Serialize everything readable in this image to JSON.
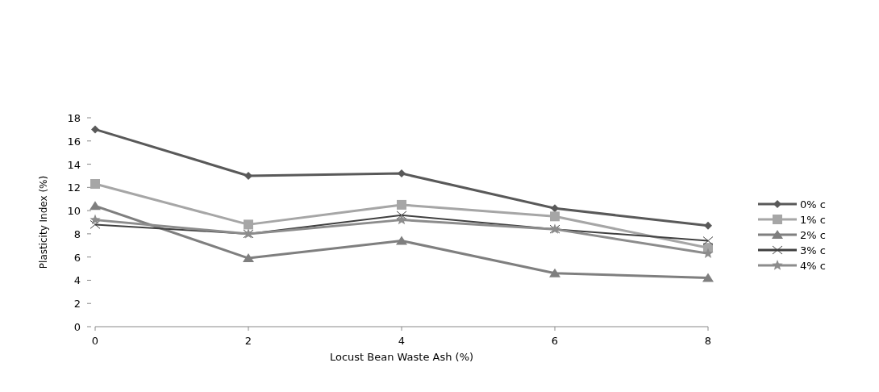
{
  "chart_data": {
    "type": "line",
    "xlabel": "Locust Bean Waste Ash (%)",
    "ylabel": "Plasticity Index (%)",
    "x": [
      0,
      2,
      4,
      6,
      8
    ],
    "xlim": [
      0,
      8
    ],
    "xticks": [
      0,
      2,
      4,
      6,
      8
    ],
    "ylim": [
      0,
      18
    ],
    "yticks": [
      0,
      2,
      4,
      6,
      8,
      10,
      12,
      14,
      16,
      18
    ],
    "grid": false,
    "legend": "right",
    "line_style": "solid",
    "series": [
      {
        "name": "0% c",
        "color": "#595959",
        "marker": "diamond",
        "values": [
          17,
          13,
          13.2,
          10.2,
          8.7
        ]
      },
      {
        "name": "1% c",
        "color": "#a6a6a6",
        "marker": "square",
        "values": [
          12.3,
          8.8,
          10.5,
          9.5,
          6.8
        ]
      },
      {
        "name": "2% c",
        "color": "#7f7f7f",
        "marker": "triangle",
        "values": [
          10.4,
          5.9,
          7.4,
          4.6,
          4.2
        ]
      },
      {
        "name": "3% c",
        "color": "#404040",
        "marker": "cross",
        "values": [
          8.8,
          8.0,
          9.6,
          8.4,
          7.4
        ]
      },
      {
        "name": "4% c",
        "color": "#8c8c8c",
        "marker": "star",
        "values": [
          9.2,
          8.0,
          9.2,
          8.4,
          6.3
        ]
      }
    ]
  }
}
